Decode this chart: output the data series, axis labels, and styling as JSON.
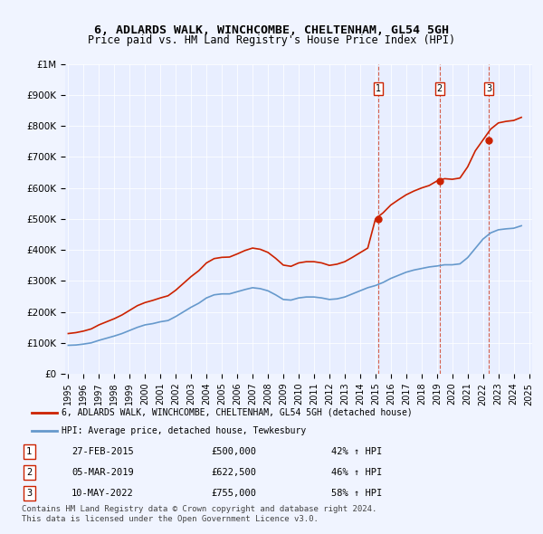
{
  "title": "6, ADLARDS WALK, WINCHCOMBE, CHELTENHAM, GL54 5GH",
  "subtitle": "Price paid vs. HM Land Registry's House Price Index (HPI)",
  "background_color": "#f0f4ff",
  "plot_bg_color": "#e8eeff",
  "ylabel": "",
  "ylim": [
    0,
    1000000
  ],
  "yticks": [
    0,
    100000,
    200000,
    300000,
    400000,
    500000,
    600000,
    700000,
    800000,
    900000,
    1000000
  ],
  "ytick_labels": [
    "£0",
    "£100K",
    "£200K",
    "£300K",
    "£400K",
    "£500K",
    "£600K",
    "£700K",
    "£800K",
    "£900K",
    "£1M"
  ],
  "sale_dates": [
    "2015-02-27",
    "2019-03-05",
    "2022-05-10"
  ],
  "sale_prices": [
    500000,
    622500,
    755000
  ],
  "sale_labels": [
    "1",
    "2",
    "3"
  ],
  "sale_pct": [
    "42% ↑ HPI",
    "46% ↑ HPI",
    "58% ↑ HPI"
  ],
  "sale_dates_display": [
    "27-FEB-2015",
    "05-MAR-2019",
    "10-MAY-2022"
  ],
  "legend_property": "6, ADLARDS WALK, WINCHCOMBE, CHELTENHAM, GL54 5GH (detached house)",
  "legend_hpi": "HPI: Average price, detached house, Tewkesbury",
  "footer1": "Contains HM Land Registry data © Crown copyright and database right 2024.",
  "footer2": "This data is licensed under the Open Government Licence v3.0.",
  "hpi_color": "#6699cc",
  "property_color": "#cc2200",
  "vline_color": "#cc2200",
  "sale_marker_color": "#cc2200",
  "hpi_x": [
    1995.0,
    1995.5,
    1996.0,
    1996.5,
    1997.0,
    1997.5,
    1998.0,
    1998.5,
    1999.0,
    1999.5,
    2000.0,
    2000.5,
    2001.0,
    2001.5,
    2002.0,
    2002.5,
    2003.0,
    2003.5,
    2004.0,
    2004.5,
    2005.0,
    2005.5,
    2006.0,
    2006.5,
    2007.0,
    2007.5,
    2008.0,
    2008.5,
    2009.0,
    2009.5,
    2010.0,
    2010.5,
    2011.0,
    2011.5,
    2012.0,
    2012.5,
    2013.0,
    2013.5,
    2014.0,
    2014.5,
    2015.0,
    2015.5,
    2016.0,
    2016.5,
    2017.0,
    2017.5,
    2018.0,
    2018.5,
    2019.0,
    2019.5,
    2020.0,
    2020.5,
    2021.0,
    2021.5,
    2022.0,
    2022.5,
    2023.0,
    2023.5,
    2024.0,
    2024.5
  ],
  "hpi_y": [
    92000,
    93000,
    96000,
    100000,
    108000,
    115000,
    122000,
    130000,
    140000,
    150000,
    158000,
    162000,
    168000,
    172000,
    185000,
    200000,
    215000,
    228000,
    245000,
    255000,
    258000,
    258000,
    265000,
    272000,
    278000,
    275000,
    268000,
    255000,
    240000,
    238000,
    245000,
    248000,
    248000,
    245000,
    240000,
    242000,
    248000,
    258000,
    268000,
    278000,
    285000,
    295000,
    308000,
    318000,
    328000,
    335000,
    340000,
    345000,
    348000,
    352000,
    352000,
    355000,
    375000,
    405000,
    435000,
    455000,
    465000,
    468000,
    470000,
    478000
  ],
  "prop_x": [
    1995.0,
    1995.5,
    1996.0,
    1996.5,
    1997.0,
    1997.5,
    1998.0,
    1998.5,
    1999.0,
    1999.5,
    2000.0,
    2000.5,
    2001.0,
    2001.5,
    2002.0,
    2002.5,
    2003.0,
    2003.5,
    2004.0,
    2004.5,
    2005.0,
    2005.5,
    2006.0,
    2006.5,
    2007.0,
    2007.5,
    2008.0,
    2008.5,
    2009.0,
    2009.5,
    2010.0,
    2010.5,
    2011.0,
    2011.5,
    2012.0,
    2012.5,
    2013.0,
    2013.5,
    2014.0,
    2014.5,
    2015.0,
    2015.5,
    2016.0,
    2016.5,
    2017.0,
    2017.5,
    2018.0,
    2018.5,
    2019.0,
    2019.5,
    2020.0,
    2020.5,
    2021.0,
    2021.5,
    2022.0,
    2022.5,
    2023.0,
    2023.5,
    2024.0,
    2024.5
  ],
  "prop_y": [
    130000,
    133000,
    138000,
    145000,
    158000,
    168000,
    178000,
    190000,
    205000,
    220000,
    230000,
    237000,
    245000,
    252000,
    270000,
    292000,
    314000,
    333000,
    358000,
    372000,
    376000,
    377000,
    387000,
    398000,
    406000,
    402000,
    392000,
    373000,
    351000,
    347000,
    358000,
    362000,
    362000,
    358000,
    350000,
    354000,
    362000,
    376000,
    391000,
    406000,
    500000,
    520000,
    545000,
    562000,
    578000,
    590000,
    600000,
    608000,
    622500,
    630000,
    628000,
    632000,
    668000,
    720000,
    755000,
    790000,
    810000,
    815000,
    818000,
    828000
  ],
  "xtick_years": [
    1995,
    1996,
    1997,
    1998,
    1999,
    2000,
    2001,
    2002,
    2003,
    2004,
    2005,
    2006,
    2007,
    2008,
    2009,
    2010,
    2011,
    2012,
    2013,
    2014,
    2015,
    2016,
    2017,
    2018,
    2019,
    2020,
    2021,
    2022,
    2023,
    2024,
    2025
  ]
}
